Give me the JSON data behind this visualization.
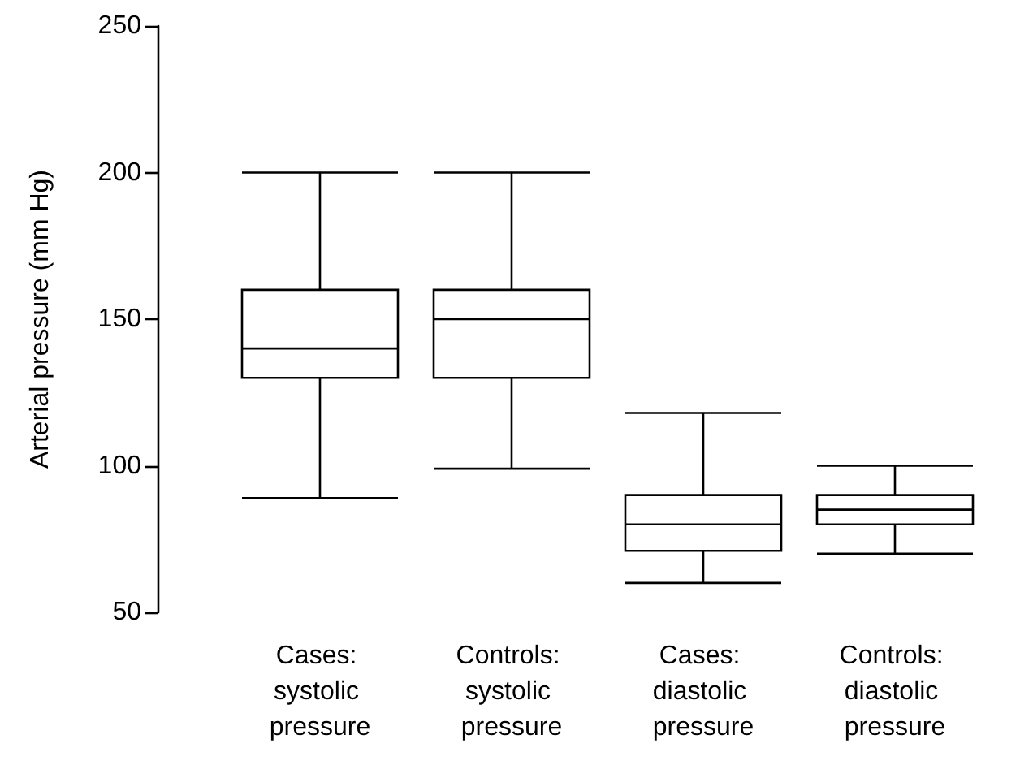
{
  "chart_data": {
    "type": "box",
    "ylabel": "Arterial pressure (mm Hg)",
    "categories": [
      "Cases: systolic pressure",
      "Controls: systolic pressure",
      "Cases: diastolic pressure",
      "Controls: diastolic pressure"
    ],
    "boxes": [
      {
        "low": 89,
        "q1": 130,
        "median": 140,
        "q3": 160,
        "high": 200
      },
      {
        "low": 99,
        "q1": 130,
        "median": 150,
        "q3": 160,
        "high": 200
      },
      {
        "low": 60,
        "q1": 71,
        "median": 80,
        "q3": 90,
        "high": 118
      },
      {
        "low": 70,
        "q1": 80,
        "median": 85,
        "q3": 90,
        "high": 100
      }
    ],
    "color": "#000000",
    "ylim": [
      50,
      250
    ],
    "yticks": [
      50,
      100,
      150,
      200,
      250
    ]
  }
}
